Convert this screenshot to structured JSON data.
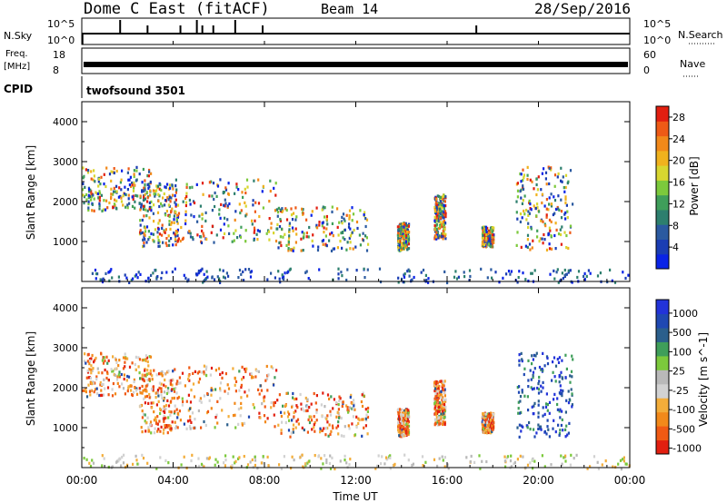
{
  "header": {
    "title": "Dome C East (fitACF)",
    "beam": "Beam 14",
    "date": "28/Sep/2016"
  },
  "strips": {
    "nsky": {
      "label": "N.Sky",
      "ytop": "10^5",
      "ybot": "10^0",
      "right_label": "N.Search",
      "rtop": "10^5",
      "rbot": "10^0"
    },
    "freq": {
      "label_top": "Freq.",
      "label_unit": "[MHz]",
      "ytop": "18",
      "ybot": "8",
      "right_label": "Nave",
      "rtop": "60",
      "rbot": "0"
    },
    "cpid": {
      "label": "CPID",
      "value": "twofsound 3501"
    }
  },
  "colors": {
    "power_scale": [
      "#0a23e6",
      "#1a3db3",
      "#2b5aa0",
      "#2d7f6e",
      "#3f9e5a",
      "#7cc93c",
      "#d8d630",
      "#f0b21e",
      "#f2891a",
      "#ee5a16",
      "#e21f10"
    ],
    "velocity_scale": [
      "#e21f10",
      "#f05a14",
      "#f2891a",
      "#f3ad3a",
      "#d2d2d2",
      "#b9b9b9",
      "#7cc93c",
      "#3f9e5a",
      "#2b5f8c",
      "#1f48b2",
      "#2233d9"
    ]
  },
  "chart_data": [
    {
      "type": "heatmap",
      "name": "power",
      "ylabel": "Slant Range [km]",
      "xlabel": "Time UT",
      "ylim": [
        0,
        4500
      ],
      "yticks": [
        "1000",
        "2000",
        "3000",
        "4000"
      ],
      "xticks": [
        "00:00",
        "04:00",
        "08:00",
        "12:00",
        "16:00",
        "20:00",
        "00:00"
      ],
      "colorbar": {
        "label": "Power [dB]",
        "ticks": [
          "4",
          "8",
          "12",
          "16",
          "20",
          "24",
          "28"
        ],
        "range": [
          0,
          30
        ]
      },
      "echo_regions": [
        {
          "t0": 0.0,
          "t1": 3.0,
          "r0": 1800,
          "r1": 2900
        },
        {
          "t0": 2.5,
          "t1": 4.2,
          "r0": 900,
          "r1": 2500
        },
        {
          "t0": 4.0,
          "t1": 8.5,
          "r0": 1000,
          "r1": 2600
        },
        {
          "t0": 8.5,
          "t1": 12.5,
          "r0": 800,
          "r1": 1900
        },
        {
          "t0": 13.8,
          "t1": 14.3,
          "r0": 800,
          "r1": 1500
        },
        {
          "t0": 15.4,
          "t1": 15.9,
          "r0": 1100,
          "r1": 2200
        },
        {
          "t0": 17.5,
          "t1": 18.0,
          "r0": 900,
          "r1": 1400
        },
        {
          "t0": 19.0,
          "t1": 21.5,
          "r0": 800,
          "r1": 2900
        },
        {
          "t0": 0.0,
          "t1": 24.0,
          "r0": 0,
          "r1": 350
        }
      ]
    },
    {
      "type": "heatmap",
      "name": "velocity",
      "ylabel": "Slant Range [km]",
      "xlabel": "Time UT",
      "ylim": [
        0,
        4500
      ],
      "yticks": [
        "1000",
        "2000",
        "3000",
        "4000"
      ],
      "xticks": [
        "00:00",
        "04:00",
        "08:00",
        "12:00",
        "16:00",
        "20:00",
        "00:00"
      ],
      "colorbar": {
        "label": "Velocity [m s^-1]",
        "ticks": [
          "1000",
          "500",
          "100",
          "25",
          "-25",
          "-100",
          "-500",
          "-1000"
        ]
      },
      "echo_regions": [
        {
          "t0": 0.0,
          "t1": 3.0,
          "r0": 1800,
          "r1": 2900
        },
        {
          "t0": 2.5,
          "t1": 4.2,
          "r0": 900,
          "r1": 2500
        },
        {
          "t0": 4.0,
          "t1": 8.5,
          "r0": 1000,
          "r1": 2600
        },
        {
          "t0": 8.5,
          "t1": 12.5,
          "r0": 800,
          "r1": 1900
        },
        {
          "t0": 13.8,
          "t1": 14.3,
          "r0": 800,
          "r1": 1500
        },
        {
          "t0": 15.4,
          "t1": 15.9,
          "r0": 1100,
          "r1": 2200
        },
        {
          "t0": 17.5,
          "t1": 18.0,
          "r0": 900,
          "r1": 1400
        },
        {
          "t0": 19.0,
          "t1": 21.5,
          "r0": 800,
          "r1": 2900
        },
        {
          "t0": 0.0,
          "t1": 24.0,
          "r0": 0,
          "r1": 350
        }
      ]
    }
  ]
}
